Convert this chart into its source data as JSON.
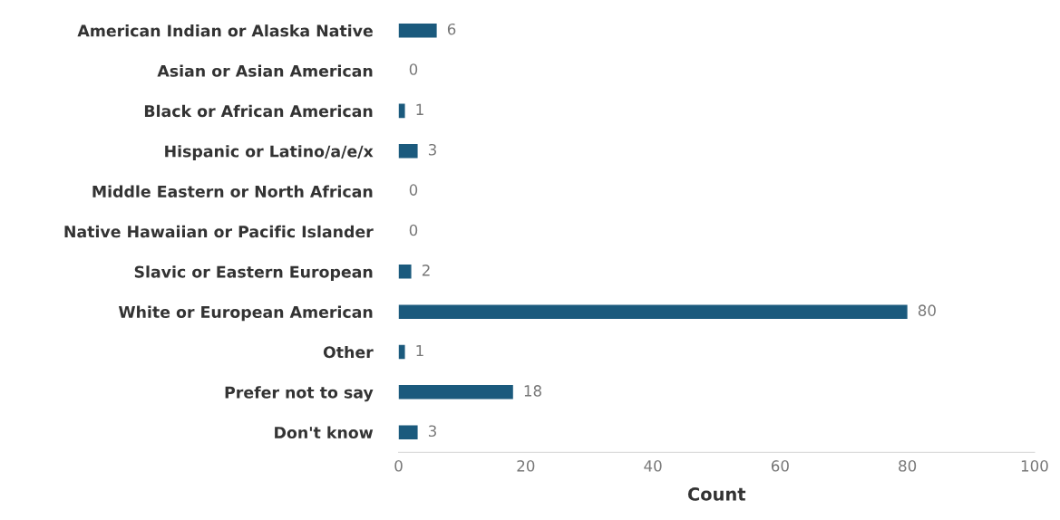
{
  "chart_data": {
    "type": "bar",
    "orientation": "horizontal",
    "xlabel": "Count",
    "categories": [
      "American Indian or Alaska Native",
      "Asian or Asian American",
      "Black or African American",
      "Hispanic or Latino/a/e/x",
      "Middle Eastern or North African",
      "Native Hawaiian or Pacific Islander",
      "Slavic or Eastern European",
      "White or European American",
      "Other",
      "Prefer not to say",
      "Don't know"
    ],
    "values": [
      6,
      0,
      1,
      3,
      0,
      0,
      2,
      80,
      1,
      18,
      3
    ],
    "color": "#1b5a7d",
    "xlim": [
      0,
      100
    ],
    "xticks": [
      0,
      20,
      40,
      60,
      80,
      100
    ],
    "data_labels": true,
    "grid": false,
    "legend": false
  }
}
